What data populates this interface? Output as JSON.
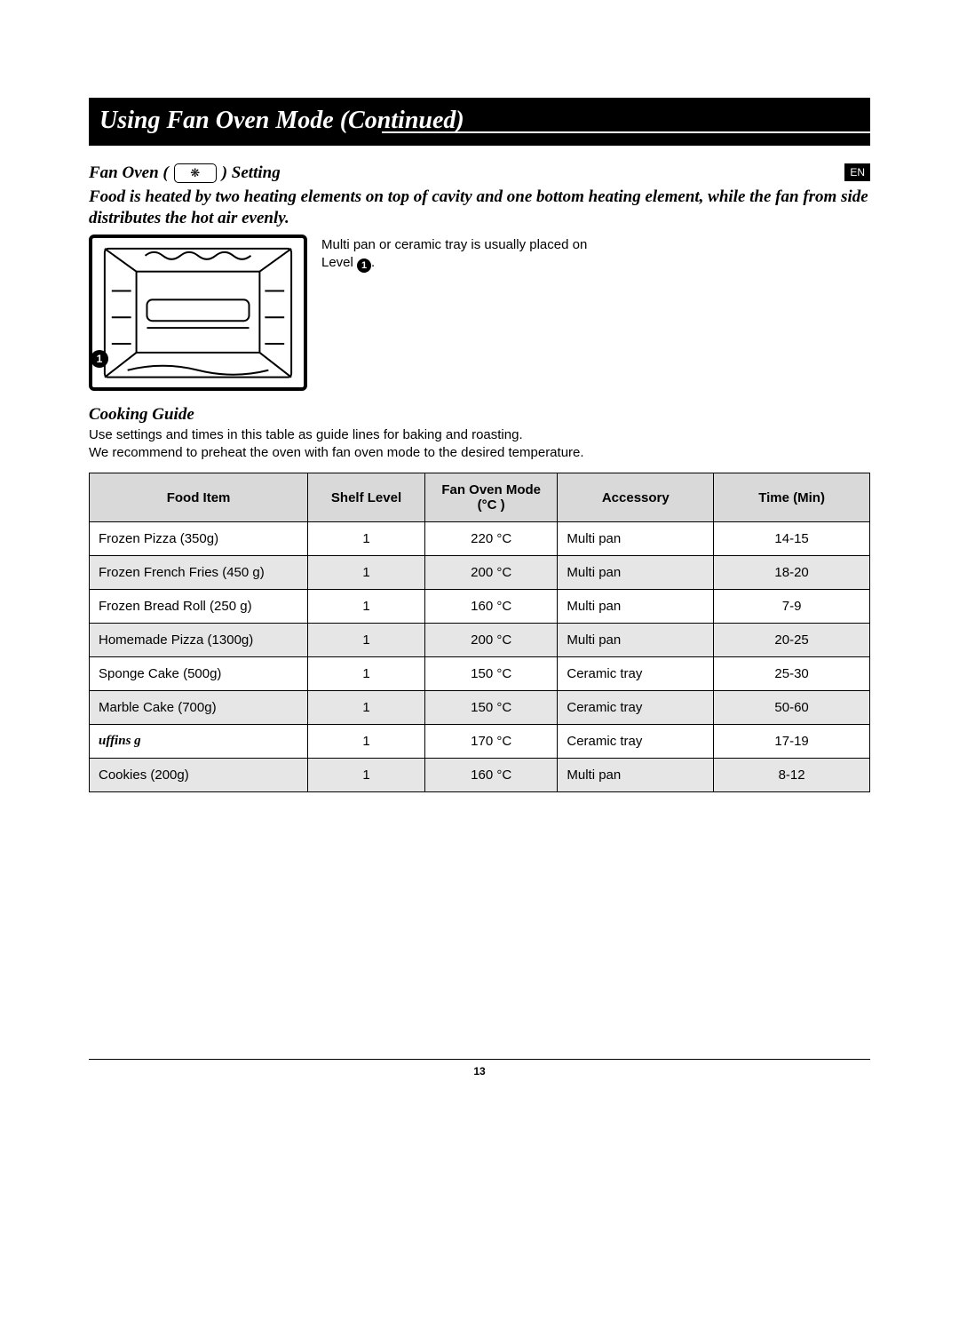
{
  "banner_title": "Using Fan Oven Mode (Continued)",
  "lang_badge": "EN",
  "setting_label_prefix": "Fan Oven (",
  "setting_label_suffix": ") Setting",
  "fan_icon_glyph": "❋",
  "description": "Food is heated by two heating elements on top of cavity and one bottom heating element, while the fan from side distributes the hot air evenly.",
  "figure_note_line1": "Multi pan or ceramic tray is usually placed on",
  "figure_note_line2_prefix": "Level ",
  "figure_note_line2_suffix": ".",
  "level_badge": "1",
  "cooking_guide_heading": "Cooking Guide",
  "guide_intro_line1": "Use settings and times in this table as guide lines for baking and roasting.",
  "guide_intro_line2": "We recommend to preheat the oven with fan oven mode to the desired temperature.",
  "table": {
    "columns": [
      "Food Item",
      "Shelf Level",
      "Fan Oven Mode (°C )",
      "Accessory",
      "Time (Min)"
    ],
    "rows": [
      {
        "food": "Frozen Pizza (350g)",
        "shelf": "1",
        "mode": "220 °C",
        "acc": "Multi pan",
        "time": "14-15",
        "shade": false
      },
      {
        "food": "Frozen French Fries (450 g)",
        "shelf": "1",
        "mode": "200 °C",
        "acc": "Multi pan",
        "time": "18-20",
        "shade": true
      },
      {
        "food": "Frozen Bread Roll (250 g)",
        "shelf": "1",
        "mode": "160 °C",
        "acc": "Multi pan",
        "time": "7-9",
        "shade": false
      },
      {
        "food": "Homemade Pizza (1300g)",
        "shelf": "1",
        "mode": "200 °C",
        "acc": "Multi pan",
        "time": "20-25",
        "shade": true
      },
      {
        "food": "Sponge Cake (500g)",
        "shelf": "1",
        "mode": "150 °C",
        "acc": "Ceramic tray",
        "time": "25-30",
        "shade": false
      },
      {
        "food": "Marble Cake (700g)",
        "shelf": "1",
        "mode": "150 °C",
        "acc": "Ceramic tray",
        "time": "50-60",
        "shade": true
      },
      {
        "food": "uffins        g",
        "shelf": "1",
        "mode": "170 °C",
        "acc": "Ceramic tray",
        "time": "17-19",
        "shade": false,
        "italic": true
      },
      {
        "food": "Cookies (200g)",
        "shelf": "1",
        "mode": "160 °C",
        "acc": "Multi pan",
        "time": "8-12",
        "shade": true
      }
    ]
  },
  "page_number": "13",
  "colors": {
    "banner_bg": "#000000",
    "banner_fg": "#ffffff",
    "table_header_bg": "#d9d9d9",
    "row_shade_bg": "#e6e6e6",
    "border": "#000000"
  }
}
